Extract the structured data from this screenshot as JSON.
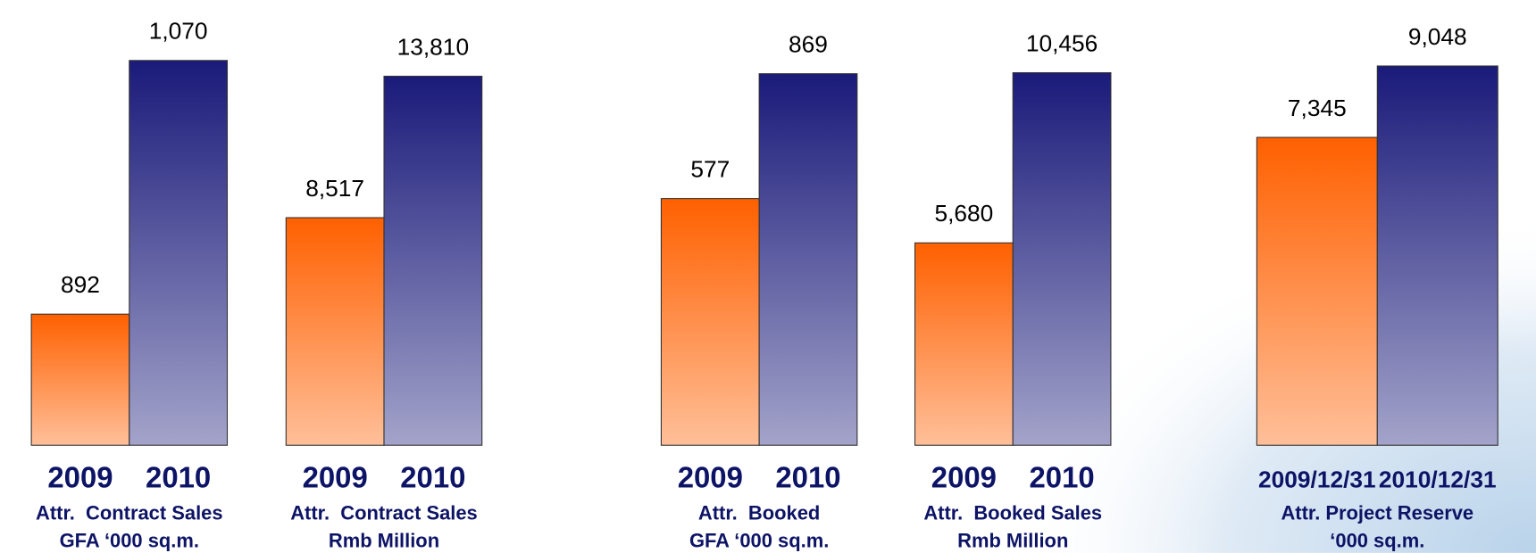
{
  "chart_data": [
    {
      "type": "bar",
      "categories": [
        "2009",
        "2010"
      ],
      "values": [
        892,
        1070
      ],
      "value_labels": [
        "892",
        "1,070"
      ],
      "ylim": [
        800,
        1100
      ],
      "colors": [
        "#ff6000",
        "#1a1a7a"
      ],
      "caption": [
        "Attr.  Contract Sales",
        "GFA ‘000 sq.m."
      ]
    },
    {
      "type": "bar",
      "categories": [
        "2009",
        "2010"
      ],
      "values": [
        8517,
        13810
      ],
      "value_labels": [
        "8,517",
        "13,810"
      ],
      "ylim": [
        0,
        16000
      ],
      "colors": [
        "#ff6000",
        "#1a1a7a"
      ],
      "caption": [
        "Attr.  Contract Sales",
        "Rmb Million"
      ]
    },
    {
      "type": "bar",
      "categories": [
        "2009",
        "2010"
      ],
      "values": [
        577,
        869
      ],
      "value_labels": [
        "577",
        "869"
      ],
      "ylim": [
        0,
        1000
      ],
      "colors": [
        "#ff6000",
        "#1a1a7a"
      ],
      "caption": [
        "Attr.  Booked",
        "GFA ‘000 sq.m."
      ]
    },
    {
      "type": "bar",
      "categories": [
        "2009",
        "2010"
      ],
      "values": [
        5680,
        10456
      ],
      "value_labels": [
        "5,680",
        "10,456"
      ],
      "ylim": [
        0,
        12000
      ],
      "colors": [
        "#ff6000",
        "#1a1a7a"
      ],
      "caption": [
        "Attr.  Booked Sales",
        "Rmb Million"
      ]
    },
    {
      "type": "bar",
      "categories": [
        "2009/12/31",
        "2010/12/31"
      ],
      "values": [
        7345,
        9048
      ],
      "value_labels": [
        "7,345",
        "9,048"
      ],
      "ylim": [
        0,
        10200
      ],
      "colors": [
        "#ff6000",
        "#1a1a7a"
      ],
      "caption": [
        "Attr. Project Reserve",
        "‘000 sq.m."
      ]
    }
  ]
}
